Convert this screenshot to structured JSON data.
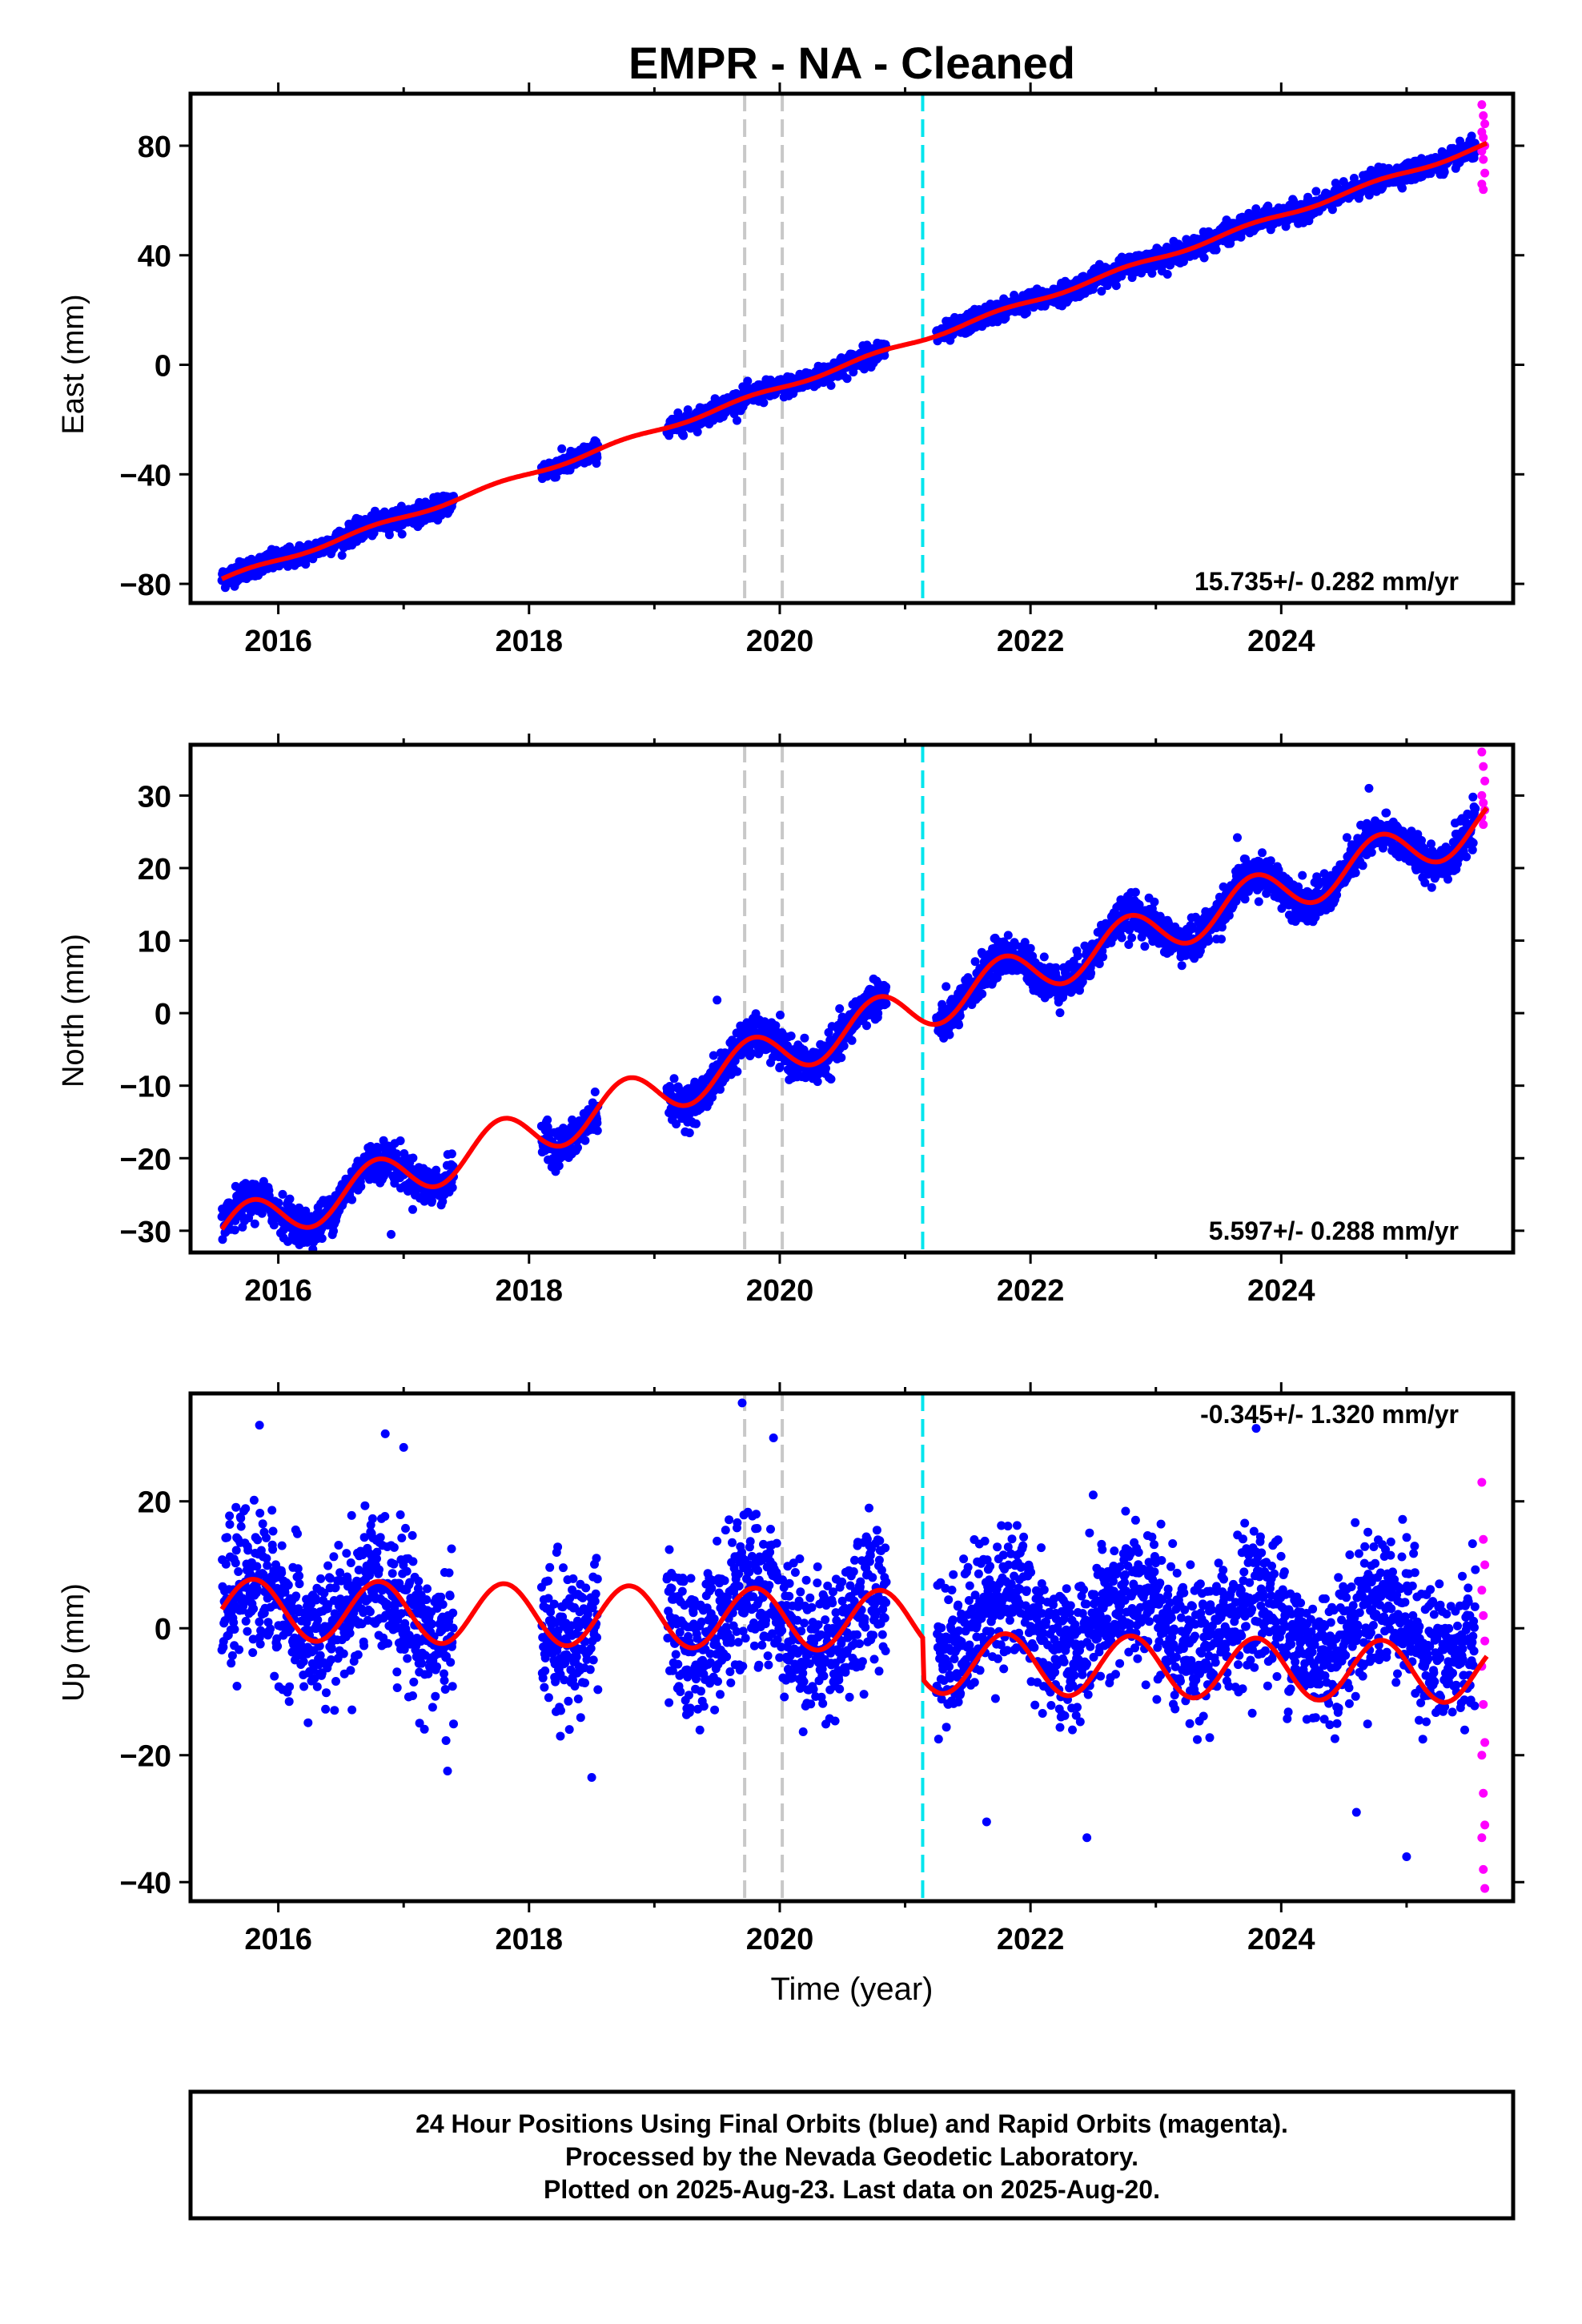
{
  "title": "EMPR  - NA - Cleaned",
  "chart_data": [
    {
      "type": "scatter",
      "ylabel": "East (mm)",
      "xlabel": "",
      "xlim": [
        2015.3,
        2025.85
      ],
      "ylim": [
        -87,
        99
      ],
      "yticks": [
        80,
        40,
        0,
        -40,
        -80
      ],
      "yticklabels": [
        "80",
        "40",
        "0",
        "−40",
        "−80"
      ],
      "xticks": [
        2016,
        2018,
        2020,
        2022,
        2024
      ],
      "xticklabels": [
        "2016",
        "2018",
        "2020",
        "2022",
        "2024"
      ],
      "rate_label": "15.735+/- 0.282 mm/yr",
      "rate_position": "bottom-right",
      "model": {
        "t0": 2015.55,
        "offset": -78.2,
        "rate": 15.735,
        "annual_amp": 0.8,
        "annual_phase": 0.3
      },
      "scatter_sd": 1.8,
      "outliers": [],
      "series": [
        {
          "color": "#0000ff",
          "segments": [
            [
              2015.55,
              2017.4
            ],
            [
              2018.1,
              2018.55
            ],
            [
              2019.1,
              2020.85
            ],
            [
              2021.25,
              2025.55
            ]
          ]
        },
        {
          "color": "#ff00ff",
          "segments": [
            [
              2025.6,
              2025.64
            ]
          ]
        }
      ],
      "vlines": [
        {
          "x": 2019.72,
          "color": "#c8c8c8"
        },
        {
          "x": 2020.02,
          "color": "#c8c8c8"
        },
        {
          "x": 2021.14,
          "color": "#00e5ee"
        }
      ],
      "magenta_values": [
        95,
        91,
        88,
        85,
        83,
        80,
        78,
        75,
        70,
        66,
        64
      ]
    },
    {
      "type": "scatter",
      "ylabel": "North (mm)",
      "xlabel": "",
      "xlim": [
        2015.3,
        2025.85
      ],
      "ylim": [
        -33,
        37
      ],
      "yticks": [
        30,
        20,
        10,
        0,
        -10,
        -20,
        -30
      ],
      "yticklabels": [
        "30",
        "20",
        "10",
        "0",
        "−10",
        "−20",
        "−30"
      ],
      "xticks": [
        2016,
        2018,
        2020,
        2022,
        2024
      ],
      "xticklabels": [
        "2016",
        "2018",
        "2020",
        "2022",
        "2024"
      ],
      "rate_label": "5.597+/- 0.288 mm/yr",
      "rate_position": "bottom-right",
      "model": {
        "t0": 2015.55,
        "offset": -29.8,
        "rate": 5.597,
        "annual_amp": 3.2,
        "annual_phase": 0.15
      },
      "scatter_sd": 1.3,
      "outliers": [
        [
          2016.9,
          -30.5
        ],
        [
          2024.7,
          31.0
        ],
        [
          2023.65,
          24.2
        ],
        [
          2019.5,
          1.8
        ]
      ],
      "series": [
        {
          "color": "#0000ff",
          "segments": [
            [
              2015.55,
              2017.4
            ],
            [
              2018.1,
              2018.55
            ],
            [
              2019.1,
              2020.85
            ],
            [
              2021.25,
              2025.55
            ]
          ]
        },
        {
          "color": "#ff00ff",
          "segments": [
            [
              2025.6,
              2025.64
            ]
          ]
        }
      ],
      "vlines": [
        {
          "x": 2019.72,
          "color": "#c8c8c8"
        },
        {
          "x": 2020.02,
          "color": "#c8c8c8"
        },
        {
          "x": 2021.14,
          "color": "#00e5ee"
        }
      ],
      "magenta_values": [
        36,
        34,
        32,
        30,
        29,
        28,
        27,
        26
      ]
    },
    {
      "type": "scatter",
      "ylabel": "Up (mm)",
      "xlabel": "Time (year)",
      "xlim": [
        2015.3,
        2025.85
      ],
      "ylim": [
        -43,
        37
      ],
      "yticks": [
        20,
        0,
        -20,
        -40
      ],
      "yticklabels": [
        "20",
        "0",
        "−20",
        "−40"
      ],
      "xticks": [
        2016,
        2018,
        2020,
        2022,
        2024
      ],
      "xticklabels": [
        "2016",
        "2018",
        "2020",
        "2022",
        "2024"
      ],
      "rate_label": "-0.345+/- 1.320 mm/yr",
      "rate_position": "top-right",
      "model": {
        "t0": 2015.55,
        "offset": 3.0,
        "rate": -0.345,
        "annual_amp": 4.8,
        "annual_phase": 0.0
      },
      "scatter_sd": 5.5,
      "outliers": [
        [
          2015.85,
          32
        ],
        [
          2019.7,
          35.5
        ],
        [
          2019.95,
          30
        ],
        [
          2017.0,
          28.5
        ],
        [
          2023.8,
          31.5
        ],
        [
          2022.5,
          21
        ],
        [
          2017.35,
          -22.5
        ],
        [
          2018.5,
          -23.5
        ],
        [
          2022.45,
          -33
        ],
        [
          2024.6,
          -29
        ],
        [
          2025.0,
          -36
        ],
        [
          2021.65,
          -30.5
        ],
        [
          2018.25,
          -17
        ]
      ],
      "series": [
        {
          "color": "#0000ff",
          "segments": [
            [
              2015.55,
              2017.4
            ],
            [
              2018.1,
              2018.55
            ],
            [
              2019.1,
              2020.85
            ],
            [
              2021.25,
              2025.55
            ]
          ]
        },
        {
          "color": "#ff00ff",
          "segments": [
            [
              2025.6,
              2025.64
            ]
          ]
        }
      ],
      "vlines": [
        {
          "x": 2019.72,
          "color": "#c8c8c8"
        },
        {
          "x": 2020.02,
          "color": "#c8c8c8"
        },
        {
          "x": 2021.14,
          "color": "#00e5ee"
        }
      ],
      "magenta_values": [
        23,
        14,
        10,
        6,
        2,
        -2,
        -6,
        -12,
        -18,
        -20,
        -26,
        -31,
        -33,
        -38,
        -41
      ]
    }
  ],
  "footer": {
    "line1": "24 Hour Positions Using Final Orbits (blue) and Rapid Orbits (magenta).",
    "line2": "Processed by the Nevada Geodetic Laboratory.",
    "line3": "Plotted on 2025-Aug-23. Last data on 2025-Aug-20."
  },
  "colors": {
    "final_orbits": "#0000ff",
    "rapid_orbits": "#ff00ff",
    "model_line": "#ff0000",
    "event_line_gray": "#c8c8c8",
    "event_line_cyan": "#00e5ee"
  }
}
